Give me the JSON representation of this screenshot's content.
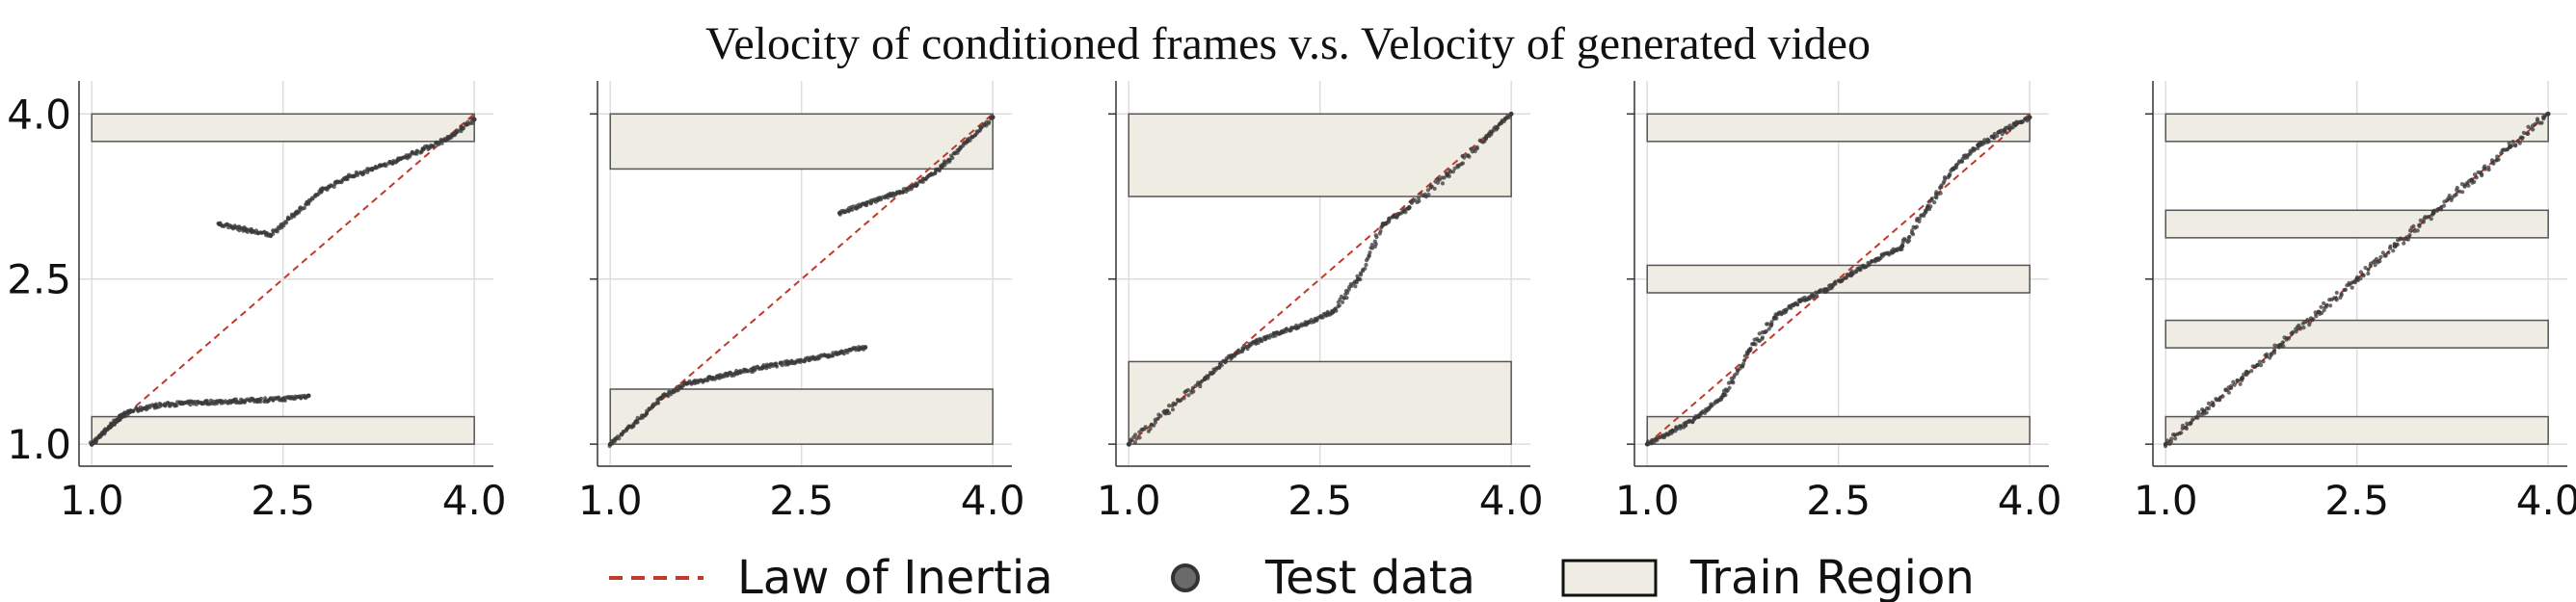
{
  "title": "Velocity of conditioned frames v.s. Velocity of generated video",
  "legend": {
    "inertia_label": "Law of Inertia",
    "test_label": "Test data",
    "train_label": "Train Region"
  },
  "colors": {
    "inertia": "#c0392b",
    "test_points": "#3a3a3a",
    "train_fill": "#efece4",
    "train_edge": "#555555",
    "grid": "#dddddd"
  },
  "chart_data": [
    {
      "type": "scatter",
      "xlim": [
        0.9,
        4.15
      ],
      "ylim": [
        0.8,
        4.3
      ],
      "xticks": [
        "1.0",
        "2.5",
        "4.0"
      ],
      "yticks": [
        "1.0",
        "2.5",
        "4.0"
      ],
      "grid": true,
      "train_regions": [
        [
          1.0,
          1.25
        ],
        [
          3.75,
          4.0
        ]
      ],
      "inertia_line": [
        [
          1.0,
          1.0
        ],
        [
          4.0,
          4.0
        ]
      ],
      "test_series": [
        {
          "x": [
            1.0,
            1.1,
            1.2,
            1.3,
            1.5,
            1.7,
            1.9,
            2.1,
            2.3,
            2.5,
            2.7
          ],
          "y": [
            1.0,
            1.12,
            1.22,
            1.3,
            1.35,
            1.37,
            1.38,
            1.39,
            1.4,
            1.41,
            1.44
          ]
        },
        {
          "x": [
            2.0,
            2.2,
            2.4,
            2.6,
            2.8,
            3.0,
            3.2,
            3.4,
            3.6,
            3.8,
            4.0
          ],
          "y": [
            3.0,
            2.95,
            2.9,
            3.1,
            3.3,
            3.42,
            3.5,
            3.58,
            3.68,
            3.78,
            3.95
          ]
        }
      ]
    },
    {
      "type": "scatter",
      "xlim": [
        0.9,
        4.15
      ],
      "ylim": [
        0.8,
        4.3
      ],
      "xticks": [
        "1.0",
        "2.5",
        "4.0"
      ],
      "yticks": [
        "1.0",
        "2.5",
        "4.0"
      ],
      "grid": true,
      "train_regions": [
        [
          1.0,
          1.5
        ],
        [
          3.5,
          4.0
        ]
      ],
      "inertia_line": [
        [
          1.0,
          1.0
        ],
        [
          4.0,
          4.0
        ]
      ],
      "test_series": [
        {
          "x": [
            1.0,
            1.2,
            1.4,
            1.6,
            1.8,
            2.0,
            2.2,
            2.4,
            2.6,
            2.8,
            3.0
          ],
          "y": [
            1.0,
            1.2,
            1.42,
            1.55,
            1.6,
            1.65,
            1.7,
            1.74,
            1.78,
            1.83,
            1.88
          ]
        },
        {
          "x": [
            2.8,
            3.0,
            3.2,
            3.4,
            3.6,
            3.8,
            4.0
          ],
          "y": [
            3.1,
            3.18,
            3.26,
            3.35,
            3.52,
            3.75,
            3.97
          ]
        }
      ]
    },
    {
      "type": "scatter",
      "xlim": [
        0.9,
        4.15
      ],
      "ylim": [
        0.8,
        4.3
      ],
      "xticks": [
        "1.0",
        "2.5",
        "4.0"
      ],
      "yticks": [
        "1.0",
        "2.5",
        "4.0"
      ],
      "grid": true,
      "train_regions": [
        [
          1.0,
          1.75
        ],
        [
          3.25,
          4.0
        ]
      ],
      "inertia_line": [
        [
          1.0,
          1.0
        ],
        [
          4.0,
          4.0
        ]
      ],
      "test_series": [
        {
          "x": [
            1.0,
            1.3,
            1.6,
            1.8,
            2.0,
            2.2,
            2.4,
            2.6,
            2.8,
            3.0,
            3.2,
            3.5,
            3.8,
            4.0
          ],
          "y": [
            1.0,
            1.3,
            1.6,
            1.8,
            1.93,
            2.02,
            2.1,
            2.2,
            2.5,
            3.0,
            3.15,
            3.45,
            3.78,
            4.0
          ]
        }
      ]
    },
    {
      "type": "scatter",
      "xlim": [
        0.9,
        4.15
      ],
      "ylim": [
        0.8,
        4.3
      ],
      "xticks": [
        "1.0",
        "2.5",
        "4.0"
      ],
      "yticks": [
        "1.0",
        "2.5",
        "4.0"
      ],
      "grid": true,
      "train_regions": [
        [
          1.0,
          1.25
        ],
        [
          2.375,
          2.625
        ],
        [
          3.75,
          4.0
        ]
      ],
      "inertia_line": [
        [
          1.0,
          1.0
        ],
        [
          4.0,
          4.0
        ]
      ],
      "test_series": [
        {
          "x": [
            1.0,
            1.2,
            1.4,
            1.6,
            1.8,
            2.0,
            2.2,
            2.4,
            2.6,
            2.8,
            3.0,
            3.2,
            3.4,
            3.6,
            3.8,
            4.0
          ],
          "y": [
            1.0,
            1.12,
            1.25,
            1.45,
            1.85,
            2.15,
            2.3,
            2.4,
            2.55,
            2.68,
            2.8,
            3.15,
            3.5,
            3.72,
            3.85,
            3.97
          ]
        }
      ]
    },
    {
      "type": "scatter",
      "xlim": [
        0.9,
        4.15
      ],
      "ylim": [
        0.8,
        4.3
      ],
      "xticks": [
        "1.0",
        "2.5",
        "4.0"
      ],
      "yticks": [
        "1.0",
        "2.5",
        "4.0"
      ],
      "grid": true,
      "train_regions": [
        [
          1.0,
          1.25
        ],
        [
          1.875,
          2.125
        ],
        [
          2.875,
          3.125
        ],
        [
          3.75,
          4.0
        ]
      ],
      "inertia_line": [
        [
          1.0,
          1.0
        ],
        [
          4.0,
          4.0
        ]
      ],
      "test_series": [
        {
          "x": [
            1.0,
            1.3,
            1.6,
            1.9,
            2.2,
            2.5,
            2.8,
            3.1,
            3.4,
            3.7,
            4.0
          ],
          "y": [
            1.0,
            1.3,
            1.6,
            1.9,
            2.2,
            2.5,
            2.8,
            3.1,
            3.4,
            3.7,
            4.0
          ]
        }
      ]
    }
  ]
}
